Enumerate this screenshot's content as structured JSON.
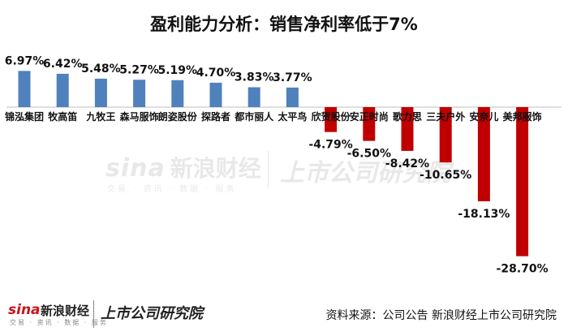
{
  "title": "盈利能力分析：销售净利率低于7%",
  "source": "资料来源：公司公告 新浪财经上市公司研究院",
  "watermark": {
    "sina": "sina",
    "cn": "新浪财经",
    "sub": "交易 · 资讯 · 数据 · 服务",
    "right": "上市公司研究院"
  },
  "footer_logo": {
    "sina": "sina",
    "cn": "新浪财经",
    "sub": "交易 · 资讯 · 数据 · 服务",
    "right": "上市公司研究院"
  },
  "colors": {
    "positive": "#4f81bd",
    "negative": "#c00000",
    "baseline": "#bfbfbf"
  },
  "chart_data": {
    "type": "bar",
    "title": "盈利能力分析：销售净利率低于7%",
    "xlabel": "",
    "ylabel": "",
    "categories": [
      "锦泓集团",
      "牧高笛",
      "九牧王",
      "森马服饰",
      "朗姿股份",
      "探路者",
      "都市丽人",
      "太平鸟",
      "欣贺股份",
      "安正时尚",
      "歌力思",
      "三夫户外",
      "安奈儿",
      "美邦服饰"
    ],
    "values": [
      6.97,
      6.42,
      5.48,
      5.27,
      5.19,
      4.7,
      3.83,
      3.77,
      -4.79,
      -6.5,
      -8.42,
      -10.65,
      -18.13,
      -28.7
    ],
    "data_labels": [
      "6.97%",
      "6.42%",
      "5.48%",
      "5.27%",
      "5.19%",
      "4.70%",
      "3.83%",
      "3.77%",
      "-4.79%",
      "-6.50%",
      "-8.42%",
      "-10.65%",
      "-18.13%",
      "-28.70%"
    ],
    "ylim": [
      -30,
      8
    ],
    "grid": false,
    "legend": "none"
  }
}
